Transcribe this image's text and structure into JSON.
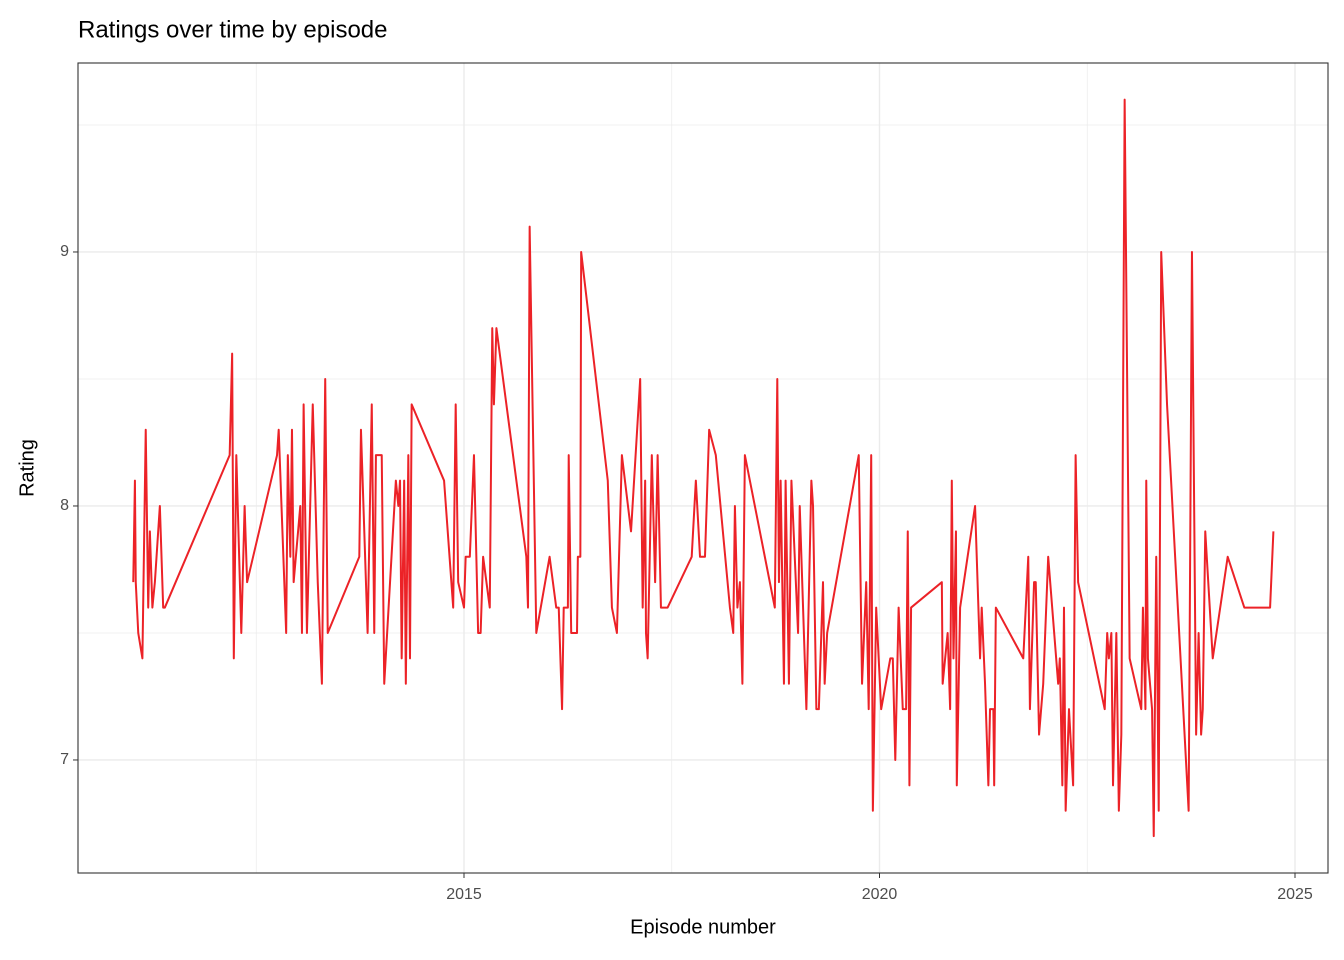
{
  "chart_data": {
    "type": "line",
    "title": "Ratings over time by episode",
    "x_label": "Episode number",
    "y_label": "Rating",
    "xlim": [
      2010.355,
      2025.397
    ],
    "xticks": [
      2015,
      2020,
      2025
    ],
    "ylim": [
      6.555,
      9.744
    ],
    "yticks": [
      7,
      8,
      9
    ],
    "grid": true,
    "series": [
      {
        "name": "Rating",
        "color": "#ec2227",
        "x": [
          2011.02,
          2011.04,
          2011.05,
          2011.08,
          2011.13,
          2011.17,
          2011.2,
          2011.22,
          2011.25,
          2011.28,
          2011.34,
          2011.38,
          2011.4,
          2012.18,
          2012.21,
          2012.23,
          2012.26,
          2012.32,
          2012.36,
          2012.39,
          2012.75,
          2012.77,
          2012.86,
          2012.88,
          2012.91,
          2012.93,
          2012.95,
          2013.03,
          2013.05,
          2013.07,
          2013.11,
          2013.18,
          2013.24,
          2013.29,
          2013.33,
          2013.36,
          2013.74,
          2013.76,
          2013.84,
          2013.89,
          2013.92,
          2013.94,
          2014.01,
          2014.04,
          2014.18,
          2014.21,
          2014.23,
          2014.25,
          2014.28,
          2014.3,
          2014.33,
          2014.35,
          2014.37,
          2014.76,
          2014.87,
          2014.9,
          2014.93,
          2015.0,
          2015.02,
          2015.07,
          2015.12,
          2015.17,
          2015.2,
          2015.23,
          2015.31,
          2015.34,
          2015.36,
          2015.39,
          2015.75,
          2015.77,
          2015.79,
          2015.87,
          2016.03,
          2016.11,
          2016.14,
          2016.18,
          2016.2,
          2016.25,
          2016.26,
          2016.29,
          2016.36,
          2016.37,
          2016.4,
          2016.41,
          2016.73,
          2016.78,
          2016.84,
          2016.9,
          2017.01,
          2017.12,
          2017.15,
          2017.18,
          2017.19,
          2017.21,
          2017.26,
          2017.3,
          2017.33,
          2017.37,
          2017.45,
          2017.74,
          2017.79,
          2017.84,
          2017.9,
          2017.95,
          2018.03,
          2018.2,
          2018.24,
          2018.26,
          2018.29,
          2018.32,
          2018.35,
          2018.38,
          2018.74,
          2018.77,
          2018.79,
          2018.81,
          2018.85,
          2018.87,
          2018.91,
          2018.94,
          2019.02,
          2019.04,
          2019.12,
          2019.18,
          2019.2,
          2019.24,
          2019.27,
          2019.32,
          2019.34,
          2019.37,
          2019.75,
          2019.79,
          2019.84,
          2019.87,
          2019.9,
          2019.92,
          2019.96,
          2020.02,
          2020.13,
          2020.16,
          2020.19,
          2020.23,
          2020.28,
          2020.32,
          2020.34,
          2020.36,
          2020.38,
          2020.75,
          2020.76,
          2020.82,
          2020.85,
          2020.87,
          2020.89,
          2020.92,
          2020.93,
          2020.97,
          2021.15,
          2021.21,
          2021.23,
          2021.27,
          2021.31,
          2021.33,
          2021.37,
          2021.38,
          2021.4,
          2021.73,
          2021.79,
          2021.81,
          2021.86,
          2021.88,
          2021.92,
          2021.97,
          2022.03,
          2022.15,
          2022.17,
          2022.2,
          2022.22,
          2022.24,
          2022.28,
          2022.33,
          2022.36,
          2022.39,
          2022.71,
          2022.74,
          2022.76,
          2022.79,
          2022.81,
          2022.85,
          2022.88,
          2022.91,
          2022.95,
          2023.01,
          2023.15,
          2023.17,
          2023.2,
          2023.21,
          2023.23,
          2023.28,
          2023.3,
          2023.33,
          2023.36,
          2023.39,
          2023.46,
          2023.72,
          2023.76,
          2023.81,
          2023.84,
          2023.87,
          2023.89,
          2023.92,
          2024.01,
          2024.19,
          2024.39,
          2024.7,
          2024.74
        ],
        "values": [
          7.7,
          8.1,
          7.7,
          7.5,
          7.4,
          8.3,
          7.6,
          7.9,
          7.6,
          7.7,
          8.0,
          7.6,
          7.6,
          8.2,
          8.6,
          7.4,
          8.2,
          7.5,
          8.0,
          7.7,
          8.2,
          8.3,
          7.5,
          8.2,
          7.8,
          8.3,
          7.7,
          8.0,
          7.5,
          8.4,
          7.5,
          8.4,
          7.7,
          7.3,
          8.5,
          7.5,
          7.8,
          8.3,
          7.5,
          8.4,
          7.5,
          8.2,
          8.2,
          7.3,
          8.1,
          8.0,
          8.1,
          7.4,
          8.1,
          7.3,
          8.2,
          7.4,
          8.4,
          8.1,
          7.6,
          8.4,
          7.7,
          7.6,
          7.8,
          7.8,
          8.2,
          7.5,
          7.5,
          7.8,
          7.6,
          8.7,
          8.4,
          8.7,
          7.8,
          7.6,
          9.1,
          7.5,
          7.8,
          7.6,
          7.6,
          7.2,
          7.6,
          7.6,
          8.2,
          7.5,
          7.5,
          7.8,
          7.8,
          9.0,
          8.1,
          7.6,
          7.5,
          8.2,
          7.9,
          8.5,
          7.6,
          8.1,
          7.5,
          7.4,
          8.2,
          7.7,
          8.2,
          7.6,
          7.6,
          7.8,
          8.1,
          7.8,
          7.8,
          8.3,
          8.2,
          7.6,
          7.5,
          8.0,
          7.6,
          7.7,
          7.3,
          8.2,
          7.6,
          8.5,
          7.7,
          8.1,
          7.3,
          8.1,
          7.3,
          8.1,
          7.5,
          8.0,
          7.2,
          8.1,
          8.0,
          7.2,
          7.2,
          7.7,
          7.3,
          7.5,
          8.2,
          7.3,
          7.7,
          7.2,
          8.2,
          6.8,
          7.6,
          7.2,
          7.4,
          7.4,
          7.0,
          7.6,
          7.2,
          7.2,
          7.9,
          6.9,
          7.6,
          7.7,
          7.3,
          7.5,
          7.2,
          8.1,
          7.4,
          7.9,
          6.9,
          7.6,
          8.0,
          7.4,
          7.6,
          7.3,
          6.9,
          7.2,
          7.2,
          6.9,
          7.6,
          7.4,
          7.8,
          7.2,
          7.7,
          7.7,
          7.1,
          7.3,
          7.8,
          7.3,
          7.4,
          6.9,
          7.6,
          6.8,
          7.2,
          6.9,
          8.2,
          7.7,
          7.2,
          7.5,
          7.4,
          7.5,
          6.9,
          7.5,
          6.8,
          7.1,
          9.6,
          7.4,
          7.2,
          7.6,
          7.2,
          8.1,
          7.4,
          7.2,
          6.7,
          7.8,
          6.8,
          9.0,
          8.4,
          6.8,
          9.0,
          7.1,
          7.5,
          7.1,
          7.2,
          7.9,
          7.4,
          7.8,
          7.6,
          7.6,
          7.9
        ]
      }
    ]
  }
}
